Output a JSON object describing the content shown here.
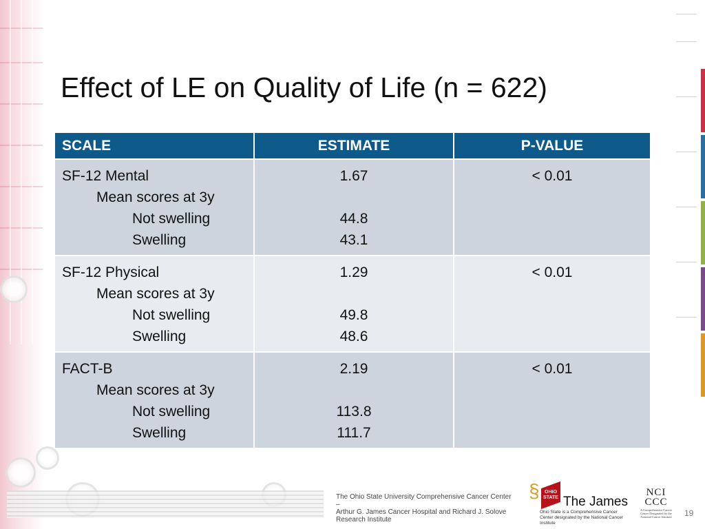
{
  "slide": {
    "title": "Effect of LE on Quality of Life (n = 622)",
    "page_number": "19"
  },
  "table": {
    "headers": [
      "SCALE",
      "ESTIMATE",
      "P-VALUE"
    ],
    "rows": [
      {
        "scale": "SF-12 Mental",
        "sub": "Mean scores at 3y",
        "item1": "Not swelling",
        "item2": "Swelling",
        "estimate": "1.67",
        "val1": "44.8",
        "val2": "43.1",
        "p_value": "< 0.01"
      },
      {
        "scale": "SF-12 Physical",
        "sub": "Mean scores at 3y",
        "item1": "Not swelling",
        "item2": "Swelling",
        "estimate": "1.29",
        "val1": "49.8",
        "val2": "48.6",
        "p_value": "< 0.01"
      },
      {
        "scale": "FACT-B",
        "sub": "Mean scores at 3y",
        "item1": "Not swelling",
        "item2": "Swelling",
        "estimate": "2.19",
        "val1": "113.8",
        "val2": "111.7",
        "p_value": "< 0.01"
      }
    ]
  },
  "footer": {
    "line1": "The Ohio State University Comprehensive Cancer Center –",
    "line2": "Arthur G. James Cancer Hospital and Richard J. Solove",
    "line3": "Research Institute"
  },
  "logos": {
    "osu_badge": "OHIO STATE",
    "james_name": "The James",
    "james_tagline": "Ohio State is a Comprehensive Cancer Center designated by the National Cancer Institute",
    "nci_line1": "NCI",
    "nci_line2": "CCC",
    "nci_small": "A Comprehensive Cancer Center Designated by the National Cancer Institute"
  },
  "colors": {
    "header_bg": "#0e5a8a",
    "row_odd": "#cdd4de",
    "row_even": "#e8ecf0",
    "accent_red": "#b5121b"
  }
}
